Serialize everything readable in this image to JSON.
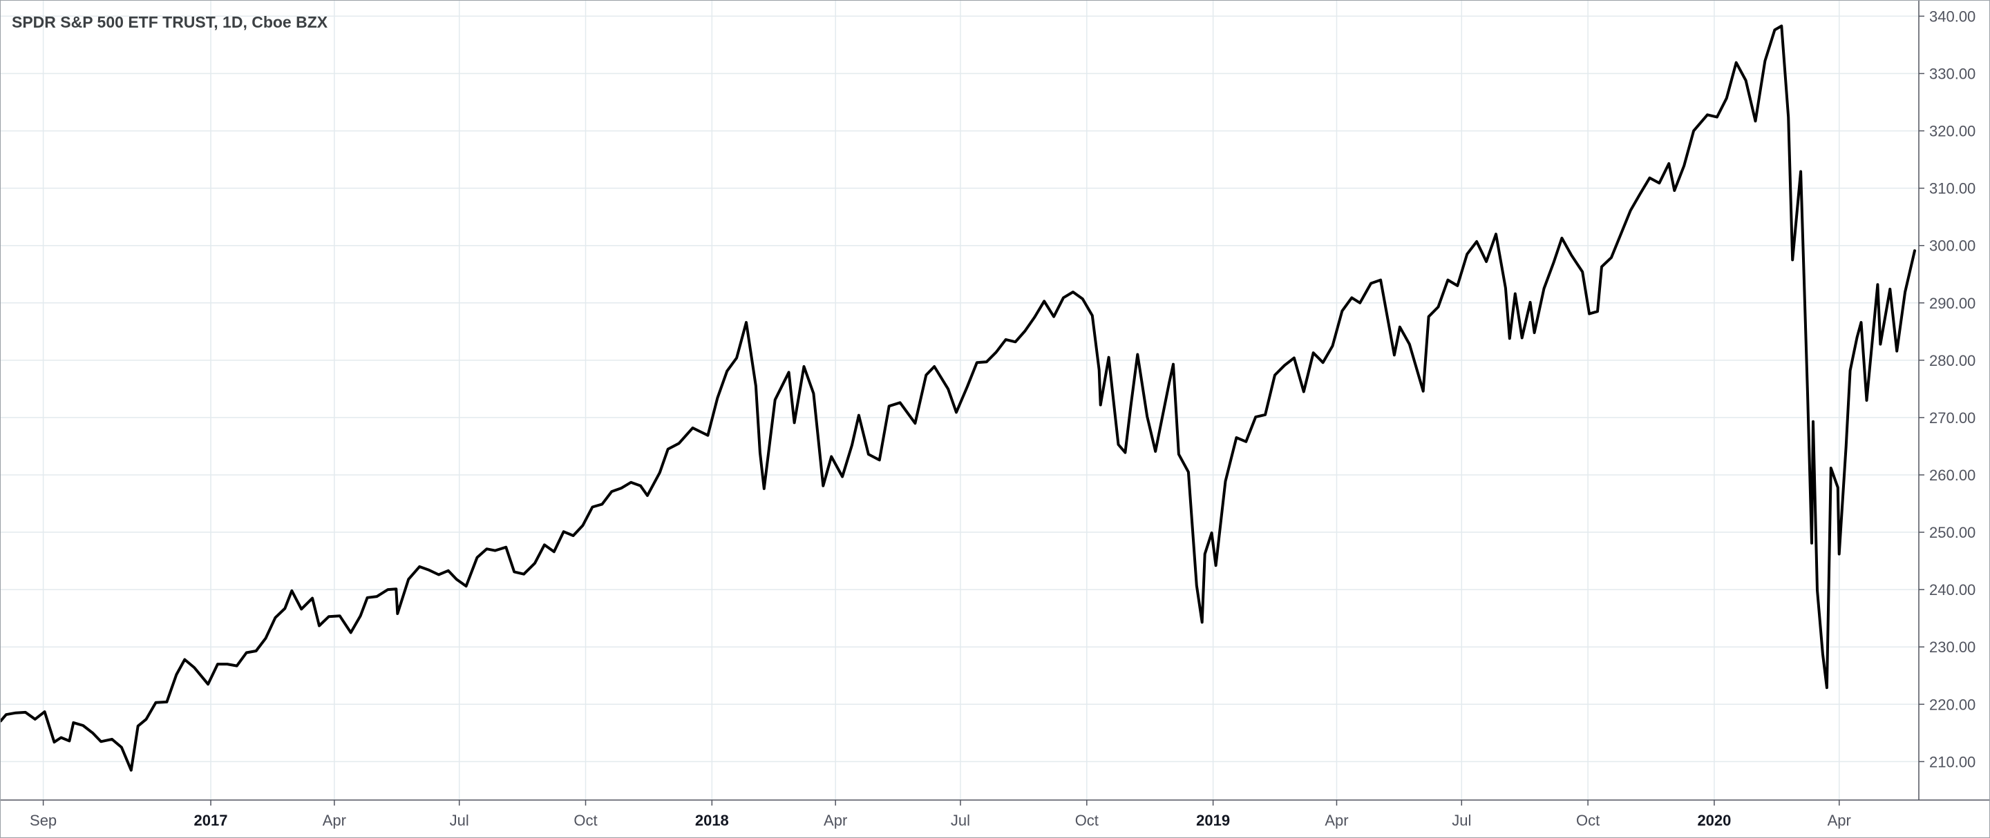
{
  "chart_data": {
    "type": "line",
    "title": "SPDR S&P 500 ETF TRUST, 1D, Cboe BZX",
    "xlabel": "",
    "ylabel": "",
    "ylim": [
      203.3,
      342.7
    ],
    "xlim": [
      "2016-08-01",
      "2020-05-29"
    ],
    "x_tick_labels": [
      {
        "date": "2016-09-01",
        "label": "Sep",
        "year": false
      },
      {
        "date": "2017-01-01",
        "label": "2017",
        "year": true
      },
      {
        "date": "2017-04-01",
        "label": "Apr",
        "year": false
      },
      {
        "date": "2017-07-01",
        "label": "Jul",
        "year": false
      },
      {
        "date": "2017-10-01",
        "label": "Oct",
        "year": false
      },
      {
        "date": "2018-01-01",
        "label": "2018",
        "year": true
      },
      {
        "date": "2018-04-01",
        "label": "Apr",
        "year": false
      },
      {
        "date": "2018-07-01",
        "label": "Jul",
        "year": false
      },
      {
        "date": "2018-10-01",
        "label": "Oct",
        "year": false
      },
      {
        "date": "2019-01-01",
        "label": "2019",
        "year": true
      },
      {
        "date": "2019-04-01",
        "label": "Apr",
        "year": false
      },
      {
        "date": "2019-07-01",
        "label": "Jul",
        "year": false
      },
      {
        "date": "2019-10-01",
        "label": "Oct",
        "year": false
      },
      {
        "date": "2020-01-01",
        "label": "2020",
        "year": true
      },
      {
        "date": "2020-04-01",
        "label": "Apr",
        "year": false
      }
    ],
    "y_tick_labels": [
      "340.00",
      "330.00",
      "320.00",
      "310.00",
      "300.00",
      "290.00",
      "280.00",
      "270.00",
      "260.00",
      "250.00",
      "240.00",
      "230.00",
      "220.00",
      "210.00"
    ],
    "y_tick_values": [
      340,
      330,
      320,
      310,
      300,
      290,
      280,
      270,
      260,
      250,
      240,
      230,
      220,
      210
    ],
    "grid": true,
    "legend": "none",
    "line_color": "#000000",
    "series": [
      {
        "name": "",
        "points": [
          [
            "2016-08-01",
            217.1
          ],
          [
            "2016-08-05",
            218.2
          ],
          [
            "2016-08-12",
            218.5
          ],
          [
            "2016-08-19",
            218.6
          ],
          [
            "2016-08-26",
            217.4
          ],
          [
            "2016-09-02",
            218.7
          ],
          [
            "2016-09-09",
            213.4
          ],
          [
            "2016-09-14",
            214.2
          ],
          [
            "2016-09-20",
            213.6
          ],
          [
            "2016-09-23",
            216.8
          ],
          [
            "2016-09-30",
            216.3
          ],
          [
            "2016-10-07",
            215.0
          ],
          [
            "2016-10-13",
            213.5
          ],
          [
            "2016-10-21",
            213.9
          ],
          [
            "2016-10-28",
            212.5
          ],
          [
            "2016-11-04",
            208.5
          ],
          [
            "2016-11-09",
            216.2
          ],
          [
            "2016-11-15",
            217.4
          ],
          [
            "2016-11-22",
            220.3
          ],
          [
            "2016-11-30",
            220.4
          ],
          [
            "2016-12-07",
            225.2
          ],
          [
            "2016-12-13",
            227.8
          ],
          [
            "2016-12-20",
            226.4
          ],
          [
            "2016-12-30",
            223.5
          ],
          [
            "2017-01-06",
            227.0
          ],
          [
            "2017-01-13",
            227.0
          ],
          [
            "2017-01-20",
            226.7
          ],
          [
            "2017-01-27",
            229.0
          ],
          [
            "2017-02-03",
            229.3
          ],
          [
            "2017-02-10",
            231.5
          ],
          [
            "2017-02-17",
            235.1
          ],
          [
            "2017-02-24",
            236.7
          ],
          [
            "2017-03-01",
            239.8
          ],
          [
            "2017-03-08",
            236.6
          ],
          [
            "2017-03-16",
            238.5
          ],
          [
            "2017-03-21",
            233.7
          ],
          [
            "2017-03-28",
            235.3
          ],
          [
            "2017-04-05",
            235.4
          ],
          [
            "2017-04-13",
            232.5
          ],
          [
            "2017-04-20",
            235.4
          ],
          [
            "2017-04-25",
            238.6
          ],
          [
            "2017-05-02",
            238.8
          ],
          [
            "2017-05-10",
            240.0
          ],
          [
            "2017-05-16",
            240.1
          ],
          [
            "2017-05-17",
            235.8
          ],
          [
            "2017-05-25",
            241.8
          ],
          [
            "2017-06-02",
            244.0
          ],
          [
            "2017-06-09",
            243.4
          ],
          [
            "2017-06-16",
            242.6
          ],
          [
            "2017-06-23",
            243.3
          ],
          [
            "2017-06-29",
            241.8
          ],
          [
            "2017-07-06",
            240.6
          ],
          [
            "2017-07-14",
            245.6
          ],
          [
            "2017-07-21",
            247.1
          ],
          [
            "2017-07-27",
            246.8
          ],
          [
            "2017-08-04",
            247.4
          ],
          [
            "2017-08-10",
            243.1
          ],
          [
            "2017-08-17",
            242.7
          ],
          [
            "2017-08-25",
            244.6
          ],
          [
            "2017-09-01",
            247.8
          ],
          [
            "2017-09-08",
            246.6
          ],
          [
            "2017-09-15",
            250.1
          ],
          [
            "2017-09-22",
            249.4
          ],
          [
            "2017-09-29",
            251.2
          ],
          [
            "2017-10-06",
            254.4
          ],
          [
            "2017-10-13",
            254.9
          ],
          [
            "2017-10-20",
            257.1
          ],
          [
            "2017-10-27",
            257.7
          ],
          [
            "2017-11-03",
            258.7
          ],
          [
            "2017-11-10",
            258.1
          ],
          [
            "2017-11-15",
            256.4
          ],
          [
            "2017-11-24",
            260.4
          ],
          [
            "2017-11-30",
            264.5
          ],
          [
            "2017-12-08",
            265.5
          ],
          [
            "2017-12-18",
            268.2
          ],
          [
            "2017-12-29",
            266.9
          ],
          [
            "2018-01-05",
            273.4
          ],
          [
            "2018-01-12",
            278.1
          ],
          [
            "2018-01-19",
            280.4
          ],
          [
            "2018-01-26",
            286.6
          ],
          [
            "2018-02-02",
            275.5
          ],
          [
            "2018-02-05",
            263.9
          ],
          [
            "2018-02-08",
            257.6
          ],
          [
            "2018-02-16",
            273.1
          ],
          [
            "2018-02-26",
            277.9
          ],
          [
            "2018-03-02",
            269.1
          ],
          [
            "2018-03-09",
            278.9
          ],
          [
            "2018-03-16",
            274.2
          ],
          [
            "2018-03-23",
            258.1
          ],
          [
            "2018-03-29",
            263.2
          ],
          [
            "2018-04-06",
            259.7
          ],
          [
            "2018-04-13",
            265.2
          ],
          [
            "2018-04-18",
            270.4
          ],
          [
            "2018-04-25",
            263.6
          ],
          [
            "2018-05-03",
            262.6
          ],
          [
            "2018-05-10",
            272.0
          ],
          [
            "2018-05-18",
            272.6
          ],
          [
            "2018-05-29",
            269.0
          ],
          [
            "2018-06-06",
            277.4
          ],
          [
            "2018-06-12",
            278.9
          ],
          [
            "2018-06-22",
            275.0
          ],
          [
            "2018-06-28",
            270.9
          ],
          [
            "2018-07-06",
            275.4
          ],
          [
            "2018-07-13",
            279.6
          ],
          [
            "2018-07-20",
            279.7
          ],
          [
            "2018-07-27",
            281.4
          ],
          [
            "2018-08-03",
            283.6
          ],
          [
            "2018-08-10",
            283.2
          ],
          [
            "2018-08-17",
            285.1
          ],
          [
            "2018-08-24",
            287.5
          ],
          [
            "2018-08-31",
            290.3
          ],
          [
            "2018-09-07",
            287.6
          ],
          [
            "2018-09-14",
            290.9
          ],
          [
            "2018-09-21",
            291.9
          ],
          [
            "2018-09-28",
            290.7
          ],
          [
            "2018-10-05",
            287.8
          ],
          [
            "2018-10-10",
            278.3
          ],
          [
            "2018-10-11",
            272.2
          ],
          [
            "2018-10-17",
            280.5
          ],
          [
            "2018-10-24",
            265.3
          ],
          [
            "2018-10-29",
            263.9
          ],
          [
            "2018-11-02",
            271.9
          ],
          [
            "2018-11-07",
            281.0
          ],
          [
            "2018-11-14",
            270.2
          ],
          [
            "2018-11-20",
            264.1
          ],
          [
            "2018-11-30",
            276.0
          ],
          [
            "2018-12-03",
            279.3
          ],
          [
            "2018-12-07",
            263.6
          ],
          [
            "2018-12-14",
            260.5
          ],
          [
            "2018-12-20",
            240.7
          ],
          [
            "2018-12-24",
            234.3
          ],
          [
            "2018-12-26",
            246.2
          ],
          [
            "2018-12-31",
            249.9
          ],
          [
            "2019-01-03",
            244.2
          ],
          [
            "2019-01-10",
            258.9
          ],
          [
            "2019-01-18",
            266.5
          ],
          [
            "2019-01-25",
            265.8
          ],
          [
            "2019-02-01",
            270.1
          ],
          [
            "2019-02-08",
            270.5
          ],
          [
            "2019-02-15",
            277.4
          ],
          [
            "2019-02-22",
            279.1
          ],
          [
            "2019-03-01",
            280.4
          ],
          [
            "2019-03-08",
            274.5
          ],
          [
            "2019-03-15",
            281.3
          ],
          [
            "2019-03-22",
            279.6
          ],
          [
            "2019-03-29",
            282.5
          ],
          [
            "2019-04-05",
            288.6
          ],
          [
            "2019-04-12",
            290.9
          ],
          [
            "2019-04-18",
            290.0
          ],
          [
            "2019-04-26",
            293.4
          ],
          [
            "2019-05-03",
            294.0
          ],
          [
            "2019-05-13",
            280.9
          ],
          [
            "2019-05-17",
            285.8
          ],
          [
            "2019-05-24",
            282.8
          ],
          [
            "2019-06-03",
            274.6
          ],
          [
            "2019-06-07",
            287.6
          ],
          [
            "2019-06-14",
            289.3
          ],
          [
            "2019-06-21",
            294.0
          ],
          [
            "2019-06-28",
            293.0
          ],
          [
            "2019-07-05",
            298.5
          ],
          [
            "2019-07-12",
            300.7
          ],
          [
            "2019-07-19",
            297.2
          ],
          [
            "2019-07-26",
            302.0
          ],
          [
            "2019-08-02",
            292.6
          ],
          [
            "2019-08-05",
            283.8
          ],
          [
            "2019-08-09",
            291.6
          ],
          [
            "2019-08-14",
            283.9
          ],
          [
            "2019-08-20",
            290.1
          ],
          [
            "2019-08-23",
            284.8
          ],
          [
            "2019-08-30",
            292.5
          ],
          [
            "2019-09-06",
            297.0
          ],
          [
            "2019-09-12",
            301.3
          ],
          [
            "2019-09-19",
            298.3
          ],
          [
            "2019-09-27",
            295.4
          ],
          [
            "2019-10-02",
            288.1
          ],
          [
            "2019-10-08",
            288.5
          ],
          [
            "2019-10-11",
            296.3
          ],
          [
            "2019-10-18",
            297.9
          ],
          [
            "2019-10-25",
            302.0
          ],
          [
            "2019-11-01",
            306.1
          ],
          [
            "2019-11-08",
            309.0
          ],
          [
            "2019-11-15",
            311.8
          ],
          [
            "2019-11-22",
            310.9
          ],
          [
            "2019-11-29",
            314.3
          ],
          [
            "2019-12-03",
            309.6
          ],
          [
            "2019-12-10",
            313.9
          ],
          [
            "2019-12-17",
            320.0
          ],
          [
            "2019-12-27",
            322.8
          ],
          [
            "2020-01-03",
            322.4
          ],
          [
            "2020-01-10",
            325.7
          ],
          [
            "2020-01-17",
            331.9
          ],
          [
            "2020-01-24",
            328.8
          ],
          [
            "2020-01-31",
            321.7
          ],
          [
            "2020-02-07",
            332.2
          ],
          [
            "2020-02-14",
            337.6
          ],
          [
            "2020-02-19",
            338.3
          ],
          [
            "2020-02-24",
            322.4
          ],
          [
            "2020-02-27",
            297.5
          ],
          [
            "2020-03-04",
            312.9
          ],
          [
            "2020-03-09",
            274.2
          ],
          [
            "2020-03-12",
            248.1
          ],
          [
            "2020-03-13",
            269.3
          ],
          [
            "2020-03-16",
            239.9
          ],
          [
            "2020-03-20",
            228.8
          ],
          [
            "2020-03-23",
            222.9
          ],
          [
            "2020-03-26",
            261.2
          ],
          [
            "2020-03-31",
            257.8
          ],
          [
            "2020-04-01",
            246.2
          ],
          [
            "2020-04-06",
            265.0
          ],
          [
            "2020-04-09",
            278.2
          ],
          [
            "2020-04-14",
            284.0
          ],
          [
            "2020-04-17",
            286.6
          ],
          [
            "2020-04-21",
            273.0
          ],
          [
            "2020-04-29",
            293.2
          ],
          [
            "2020-05-01",
            282.8
          ],
          [
            "2020-05-08",
            292.4
          ],
          [
            "2020-05-13",
            281.6
          ],
          [
            "2020-05-19",
            291.9
          ],
          [
            "2020-05-26",
            299.1
          ]
        ]
      }
    ]
  }
}
